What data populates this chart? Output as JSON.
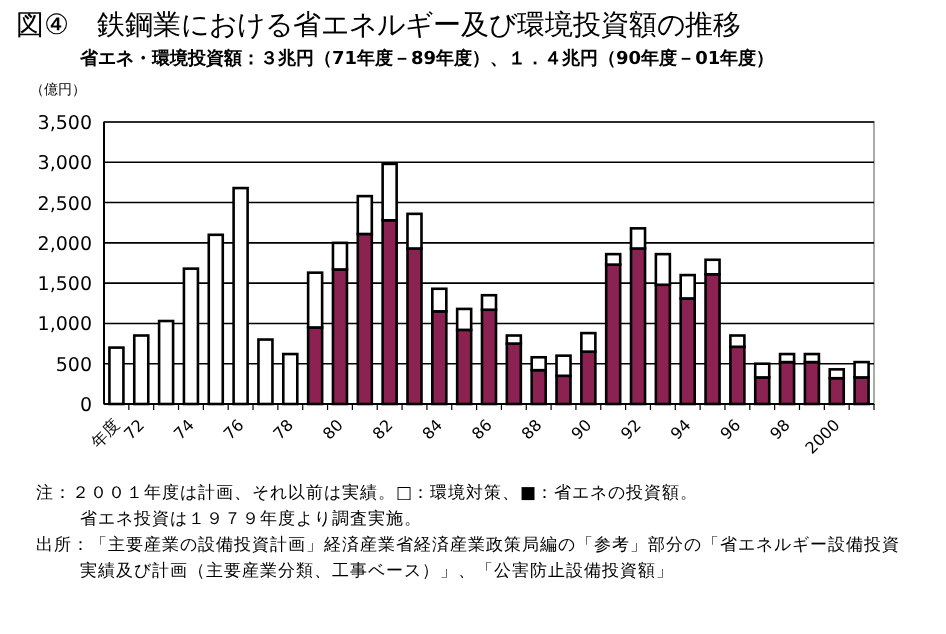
{
  "chart_data": {
    "type": "bar",
    "stacked": true,
    "title": "図④　鉄鋼業における省エネルギー及び環境投資額の推移",
    "subtitle": "省エネ・環境投資額：３兆円（71年度－89年度）、１．４兆円（90年度－01年度）",
    "ylabel": "（億円）",
    "categories": [
      "年度",
      "72",
      null,
      "74",
      null,
      "76",
      null,
      "78",
      null,
      "80",
      null,
      "82",
      null,
      "84",
      null,
      "86",
      null,
      "88",
      null,
      "90",
      null,
      "92",
      null,
      "94",
      null,
      "96",
      null,
      "98",
      null,
      "2000",
      null
    ],
    "series": [
      {
        "color": "#8b2252",
        "values": [
          0,
          0,
          0,
          0,
          0,
          0,
          0,
          0,
          950,
          1670,
          2110,
          2280,
          1930,
          1150,
          920,
          1170,
          750,
          420,
          350,
          650,
          1730,
          1930,
          1480,
          1310,
          1610,
          710,
          330,
          520,
          520,
          320,
          330
        ]
      },
      {
        "color": "#ffffff",
        "values": [
          700,
          850,
          1030,
          1680,
          2100,
          2680,
          800,
          620,
          680,
          330,
          470,
          700,
          430,
          280,
          260,
          180,
          100,
          160,
          250,
          230,
          130,
          250,
          380,
          290,
          180,
          140,
          170,
          100,
          100,
          110,
          190
        ]
      }
    ],
    "ylim": [
      0,
      3500
    ],
    "yticks": [
      0,
      {
        "value": 500,
        "label": "500"
      },
      {
        "value": 1000,
        "label": "1,000"
      },
      {
        "value": 1500,
        "label": "1,500"
      },
      {
        "value": 2000,
        "label": "2,000"
      },
      {
        "value": 2500,
        "label": "2,500"
      },
      {
        "value": 3000,
        "label": "3,000"
      },
      {
        "value": 3500,
        "label": "3,500"
      }
    ],
    "grid": "y",
    "annotations": [
      "注：２００１年度は計画、それ以前は実績。□：環境対策、■：省エネの投資額。",
      "省エネ投資は１９７９年度より調査実施。",
      "出所：「主要産業の設備投資計画」経済産業省経済産業政策局編の「参考」部分の「省エネルギー設備投資実績及び計画（主要産業分類、工事ベース）」、「公害防止設備投資額」"
    ]
  }
}
